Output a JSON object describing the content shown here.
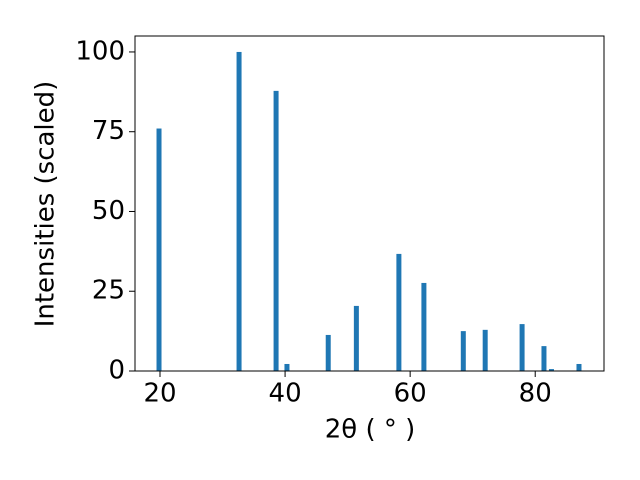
{
  "chart_data": {
    "type": "bar",
    "x": [
      19.84,
      32.64,
      38.56,
      40.3,
      46.9,
      51.4,
      58.2,
      62.2,
      68.5,
      72.0,
      77.9,
      81.4,
      82.6,
      87.0
    ],
    "values": [
      76,
      100,
      87.8,
      2.2,
      11.3,
      20.4,
      36.7,
      27.6,
      12.5,
      12.9,
      14.7,
      7.8,
      0.6,
      2.2
    ],
    "color": "#1f77b4",
    "xlabel": "2θ ( ° )",
    "ylabel": "Intensities (scaled)",
    "xlim": [
      16,
      91
    ],
    "ylim": [
      0,
      105
    ],
    "xticks": [
      20,
      40,
      60,
      80
    ],
    "yticks": [
      0,
      25,
      50,
      75,
      100
    ]
  }
}
